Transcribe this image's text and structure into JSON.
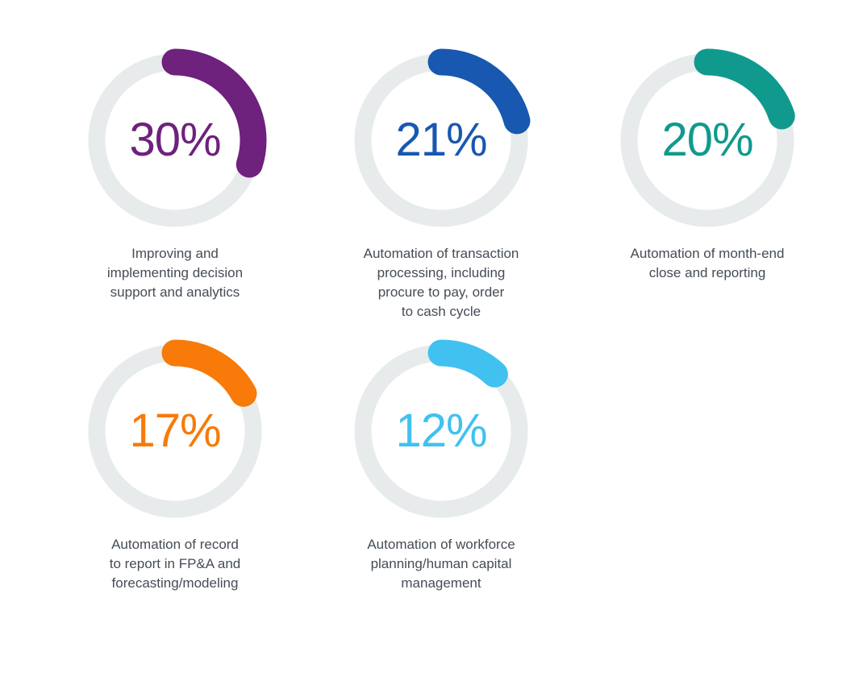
{
  "page": {
    "background_color": "#ffffff",
    "label_text_color": "#454c55"
  },
  "chart_data": {
    "type": "pie",
    "variant": "donut-gauge-grid",
    "title": "",
    "unit": "%",
    "start_angle_deg": 0,
    "direction": "clockwise",
    "legend_position": "below-each-gauge",
    "grid": "off",
    "track_color": "#e8ebeb",
    "label_color": "#454c55",
    "items": [
      {
        "value": 30,
        "display": "30%",
        "color": "#6e217d",
        "label": "Improving and implementing decision support and analytics",
        "label_lines": [
          "Improving and",
          "implementing decision",
          "support and analytics"
        ]
      },
      {
        "value": 21,
        "display": "21%",
        "color": "#1858b0",
        "label": "Automation of transaction processing, including procure to pay, order to cash cycle",
        "label_lines": [
          "Automation of transaction",
          "processing, including",
          "procure to pay, order",
          "to cash cycle"
        ]
      },
      {
        "value": 20,
        "display": "20%",
        "color": "#109a8d",
        "label": "Automation of month-end close and reporting",
        "label_lines": [
          "Automation of month-end",
          "close and reporting"
        ]
      },
      {
        "value": 17,
        "display": "17%",
        "color": "#f87a08",
        "label": "Automation of record to report in FP&A and forecasting/modeling",
        "label_lines": [
          "Automation of record",
          "to report in FP&A and",
          "forecasting/modeling"
        ]
      },
      {
        "value": 12,
        "display": "12%",
        "color": "#41c1f0",
        "label": "Automation of workforce planning/human capital management",
        "label_lines": [
          "Automation of workforce",
          "planning/human capital",
          "management"
        ]
      }
    ]
  }
}
